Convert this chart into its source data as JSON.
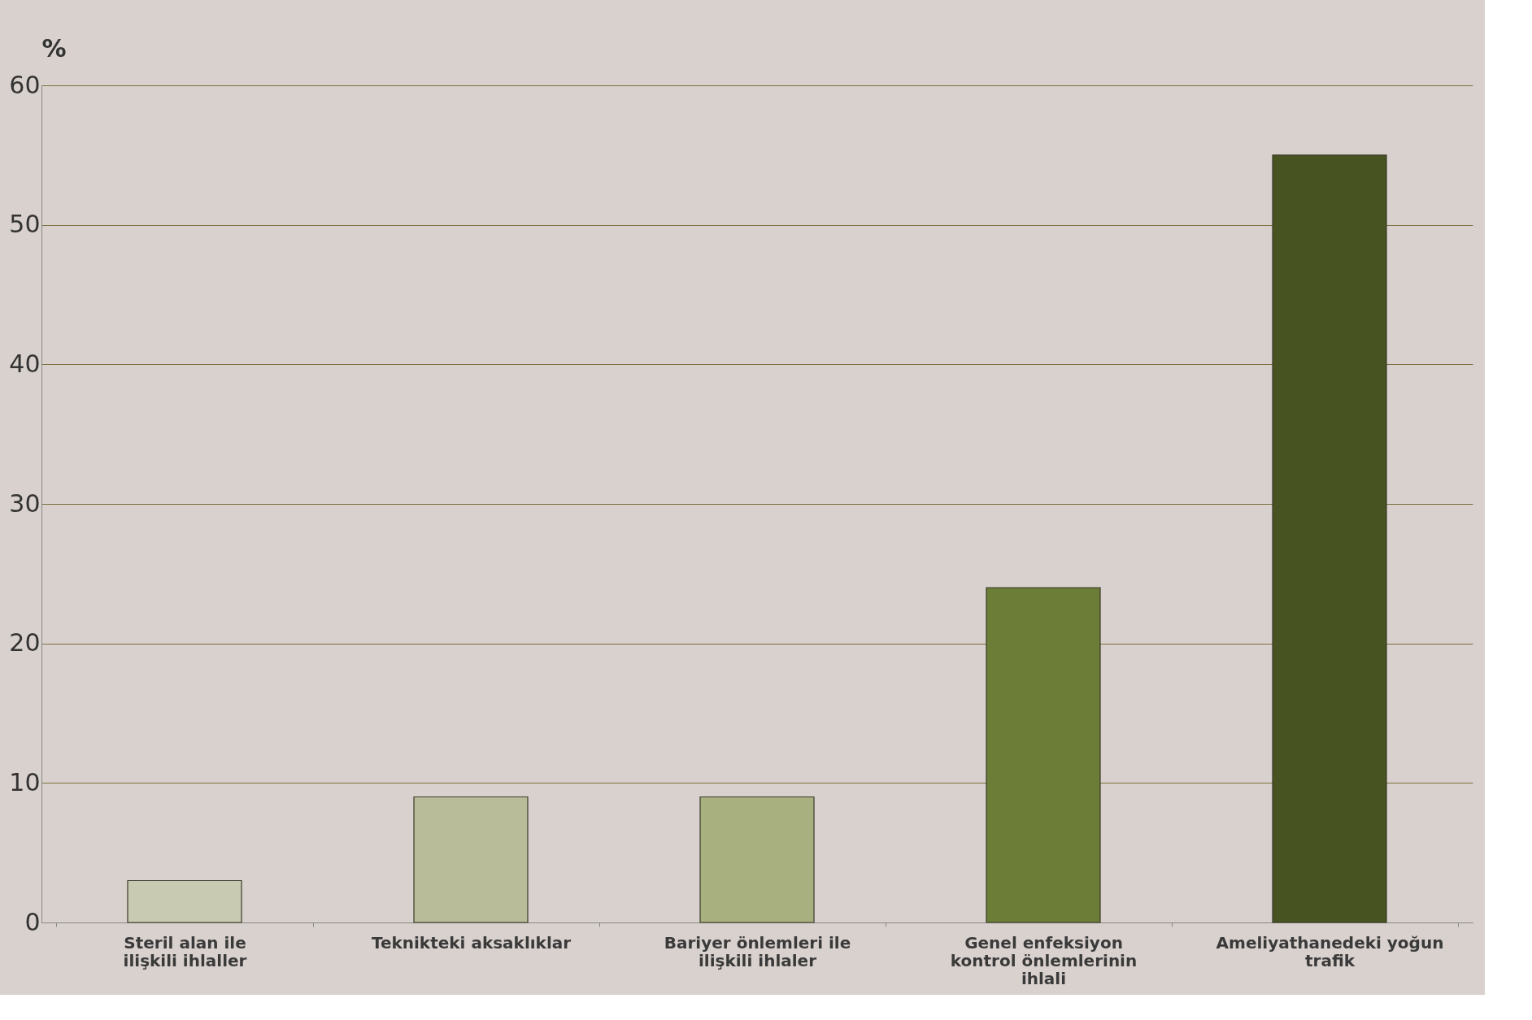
{
  "chart_data": {
    "type": "bar",
    "ylabel": "%",
    "categories": [
      "Steril alan ile ilişkili ihlaller",
      "Teknikteki aksaklıklar",
      "Bariyer önlemleri ile ilişkili ihlaler",
      "Genel enfeksiyon kontrol önlemlerinin ihlali",
      "Ameliyathanedeki yoğun trafik"
    ],
    "values": [
      3,
      9,
      9,
      24,
      55
    ],
    "colors": [
      "#c9cab2",
      "#b9bc98",
      "#a9b07f",
      "#6b7d37",
      "#485322"
    ],
    "ylim": [
      0,
      60
    ],
    "yticks": [
      0,
      10,
      20,
      30,
      40,
      50,
      60
    ],
    "grid": "y"
  }
}
